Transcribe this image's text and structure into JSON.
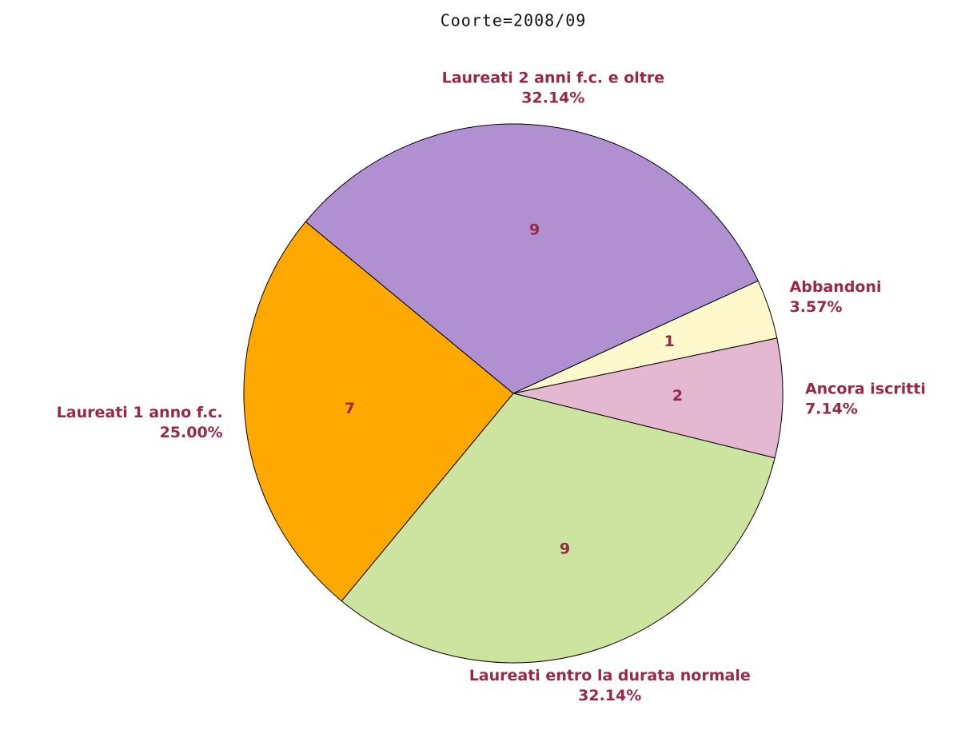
{
  "chart_data": {
    "type": "pie",
    "title": "Coorte=2008/09",
    "categories": [
      "Abbandoni",
      "Ancora iscritti",
      "Laureati entro la durata normale",
      "Laureati 1 anno f.c.",
      "Laureati 2 anni f.c. e oltre"
    ],
    "values": [
      1,
      2,
      9,
      7,
      9
    ],
    "percent_labels": [
      "3.57%",
      "7.14%",
      "32.14%",
      "25.00%",
      "32.14%"
    ],
    "colors": [
      "#fff8cc",
      "#e4b8d0",
      "#cce4a0",
      "#ffa800",
      "#b090d0"
    ]
  }
}
